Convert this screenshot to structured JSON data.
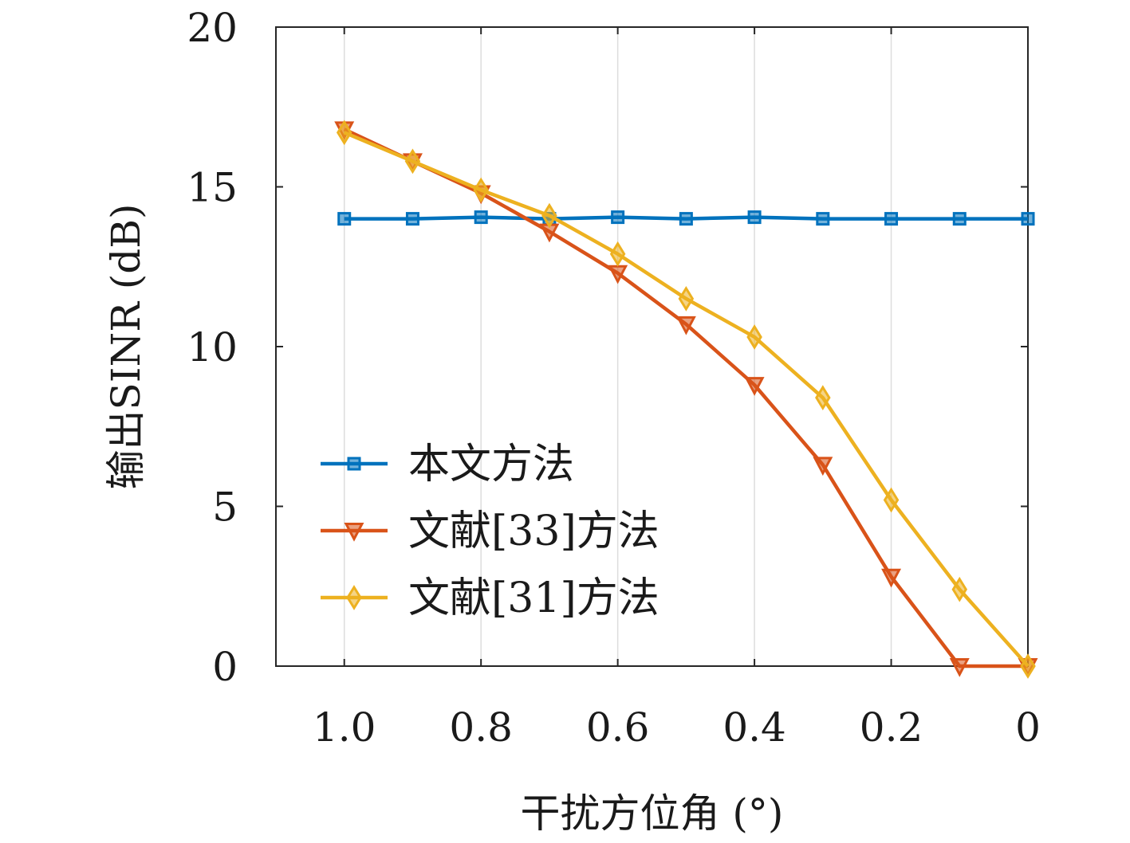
{
  "chart_data": {
    "type": "line",
    "xlabel": "干扰方位角 (°)",
    "ylabel": "输出SINR (dB)",
    "x": [
      1.0,
      0.9,
      0.8,
      0.7,
      0.6,
      0.5,
      0.4,
      0.3,
      0.2,
      0.1,
      0.0
    ],
    "xlim": [
      1.1,
      0.0
    ],
    "x_reversed": true,
    "ylim": [
      0,
      20
    ],
    "xticks": [
      1.0,
      0.8,
      0.6,
      0.4,
      0.2,
      0.0
    ],
    "xtick_labels": [
      "1.0",
      "0.8",
      "0.6",
      "0.4",
      "0.2",
      "0"
    ],
    "yticks": [
      0,
      5,
      10,
      15,
      20
    ],
    "ytick_labels": [
      "0",
      "5",
      "10",
      "15",
      "20"
    ],
    "grid": "vertical",
    "legend_position": "lower-left",
    "series": [
      {
        "name": "本文方法",
        "color": "#0072BD",
        "marker": "square",
        "values": [
          14.0,
          14.0,
          14.05,
          14.0,
          14.05,
          14.0,
          14.05,
          14.0,
          14.0,
          14.0,
          14.0
        ]
      },
      {
        "name": "文献[33]方法",
        "color": "#D95319",
        "marker": "triangle-down",
        "values": [
          16.8,
          15.8,
          14.8,
          13.6,
          12.3,
          10.7,
          8.8,
          6.3,
          2.8,
          0.0,
          0.0
        ]
      },
      {
        "name": "文献[31]方法",
        "color": "#EDB120",
        "marker": "diamond",
        "values": [
          16.7,
          15.8,
          14.9,
          14.1,
          12.9,
          11.5,
          10.3,
          8.4,
          5.2,
          2.4,
          0.0
        ]
      }
    ]
  }
}
